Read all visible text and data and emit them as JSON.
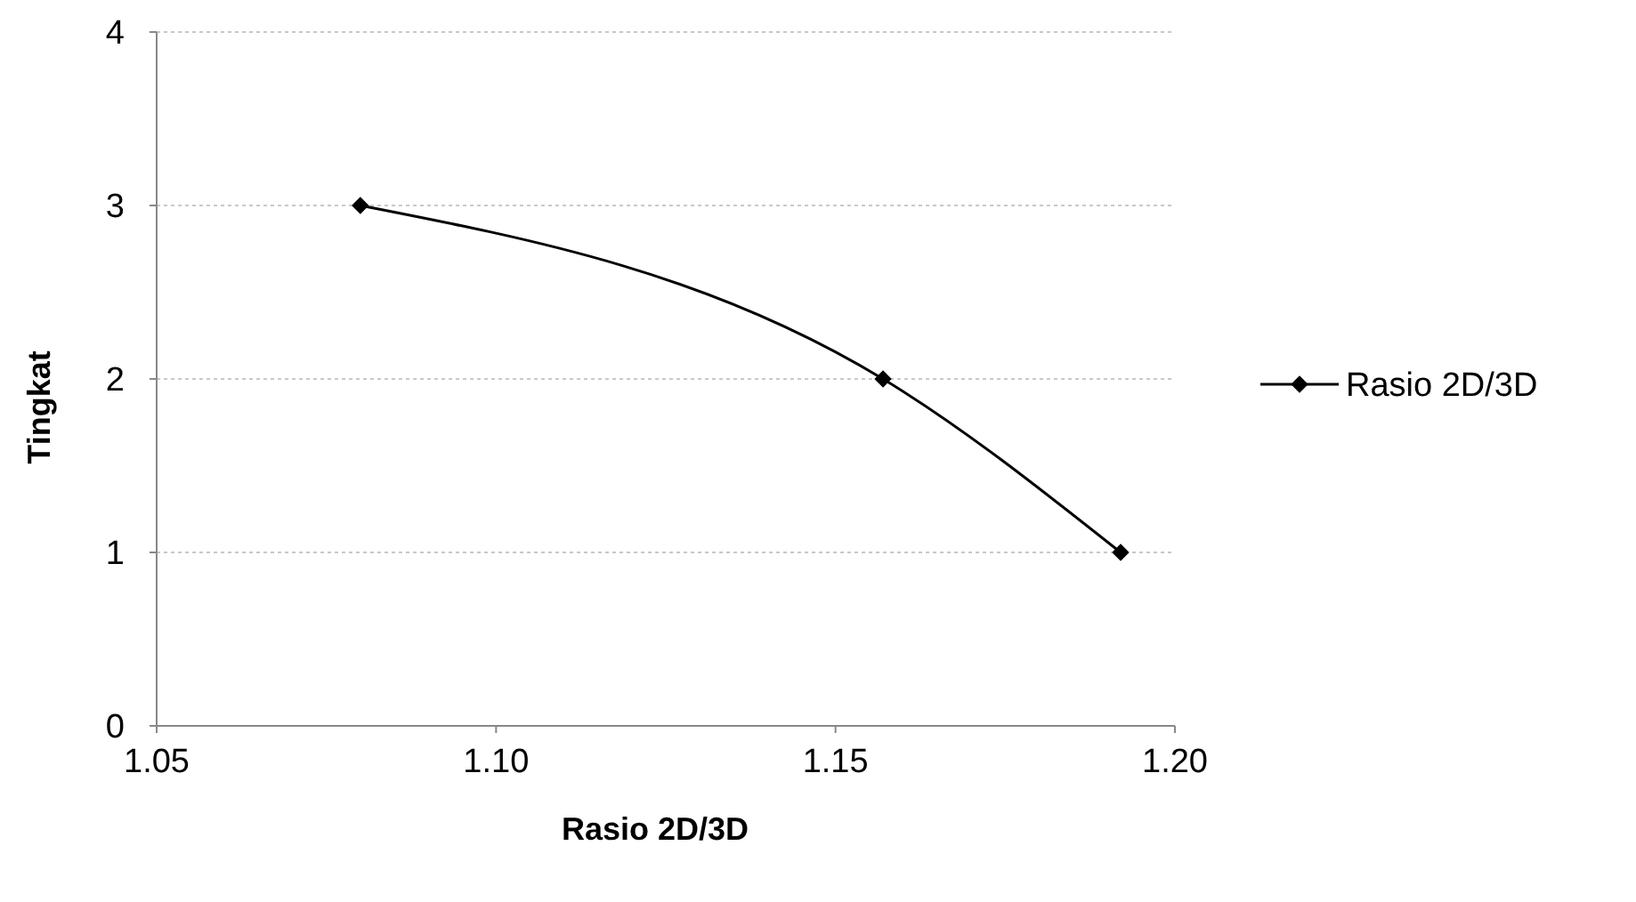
{
  "chart_data": {
    "type": "line",
    "xlabel": "Rasio 2D/3D",
    "ylabel": "Tingkat",
    "x": [
      1.08,
      1.157,
      1.192
    ],
    "series": [
      {
        "name": "Rasio 2D/3D",
        "color": "#000000",
        "values": [
          3,
          2,
          1
        ]
      }
    ],
    "xlim": [
      1.05,
      1.2
    ],
    "xticks": [
      {
        "value": 1.05,
        "label": "1.05"
      },
      {
        "value": 1.1,
        "label": "1.10"
      },
      {
        "value": 1.15,
        "label": "1.15"
      },
      {
        "value": 1.2,
        "label": "1.20"
      }
    ],
    "ylim": [
      0,
      4
    ],
    "yticks": [
      0,
      1,
      2,
      3,
      4
    ],
    "grid": "y",
    "legend": "right",
    "marker": "diamond",
    "line_style": "solid"
  }
}
